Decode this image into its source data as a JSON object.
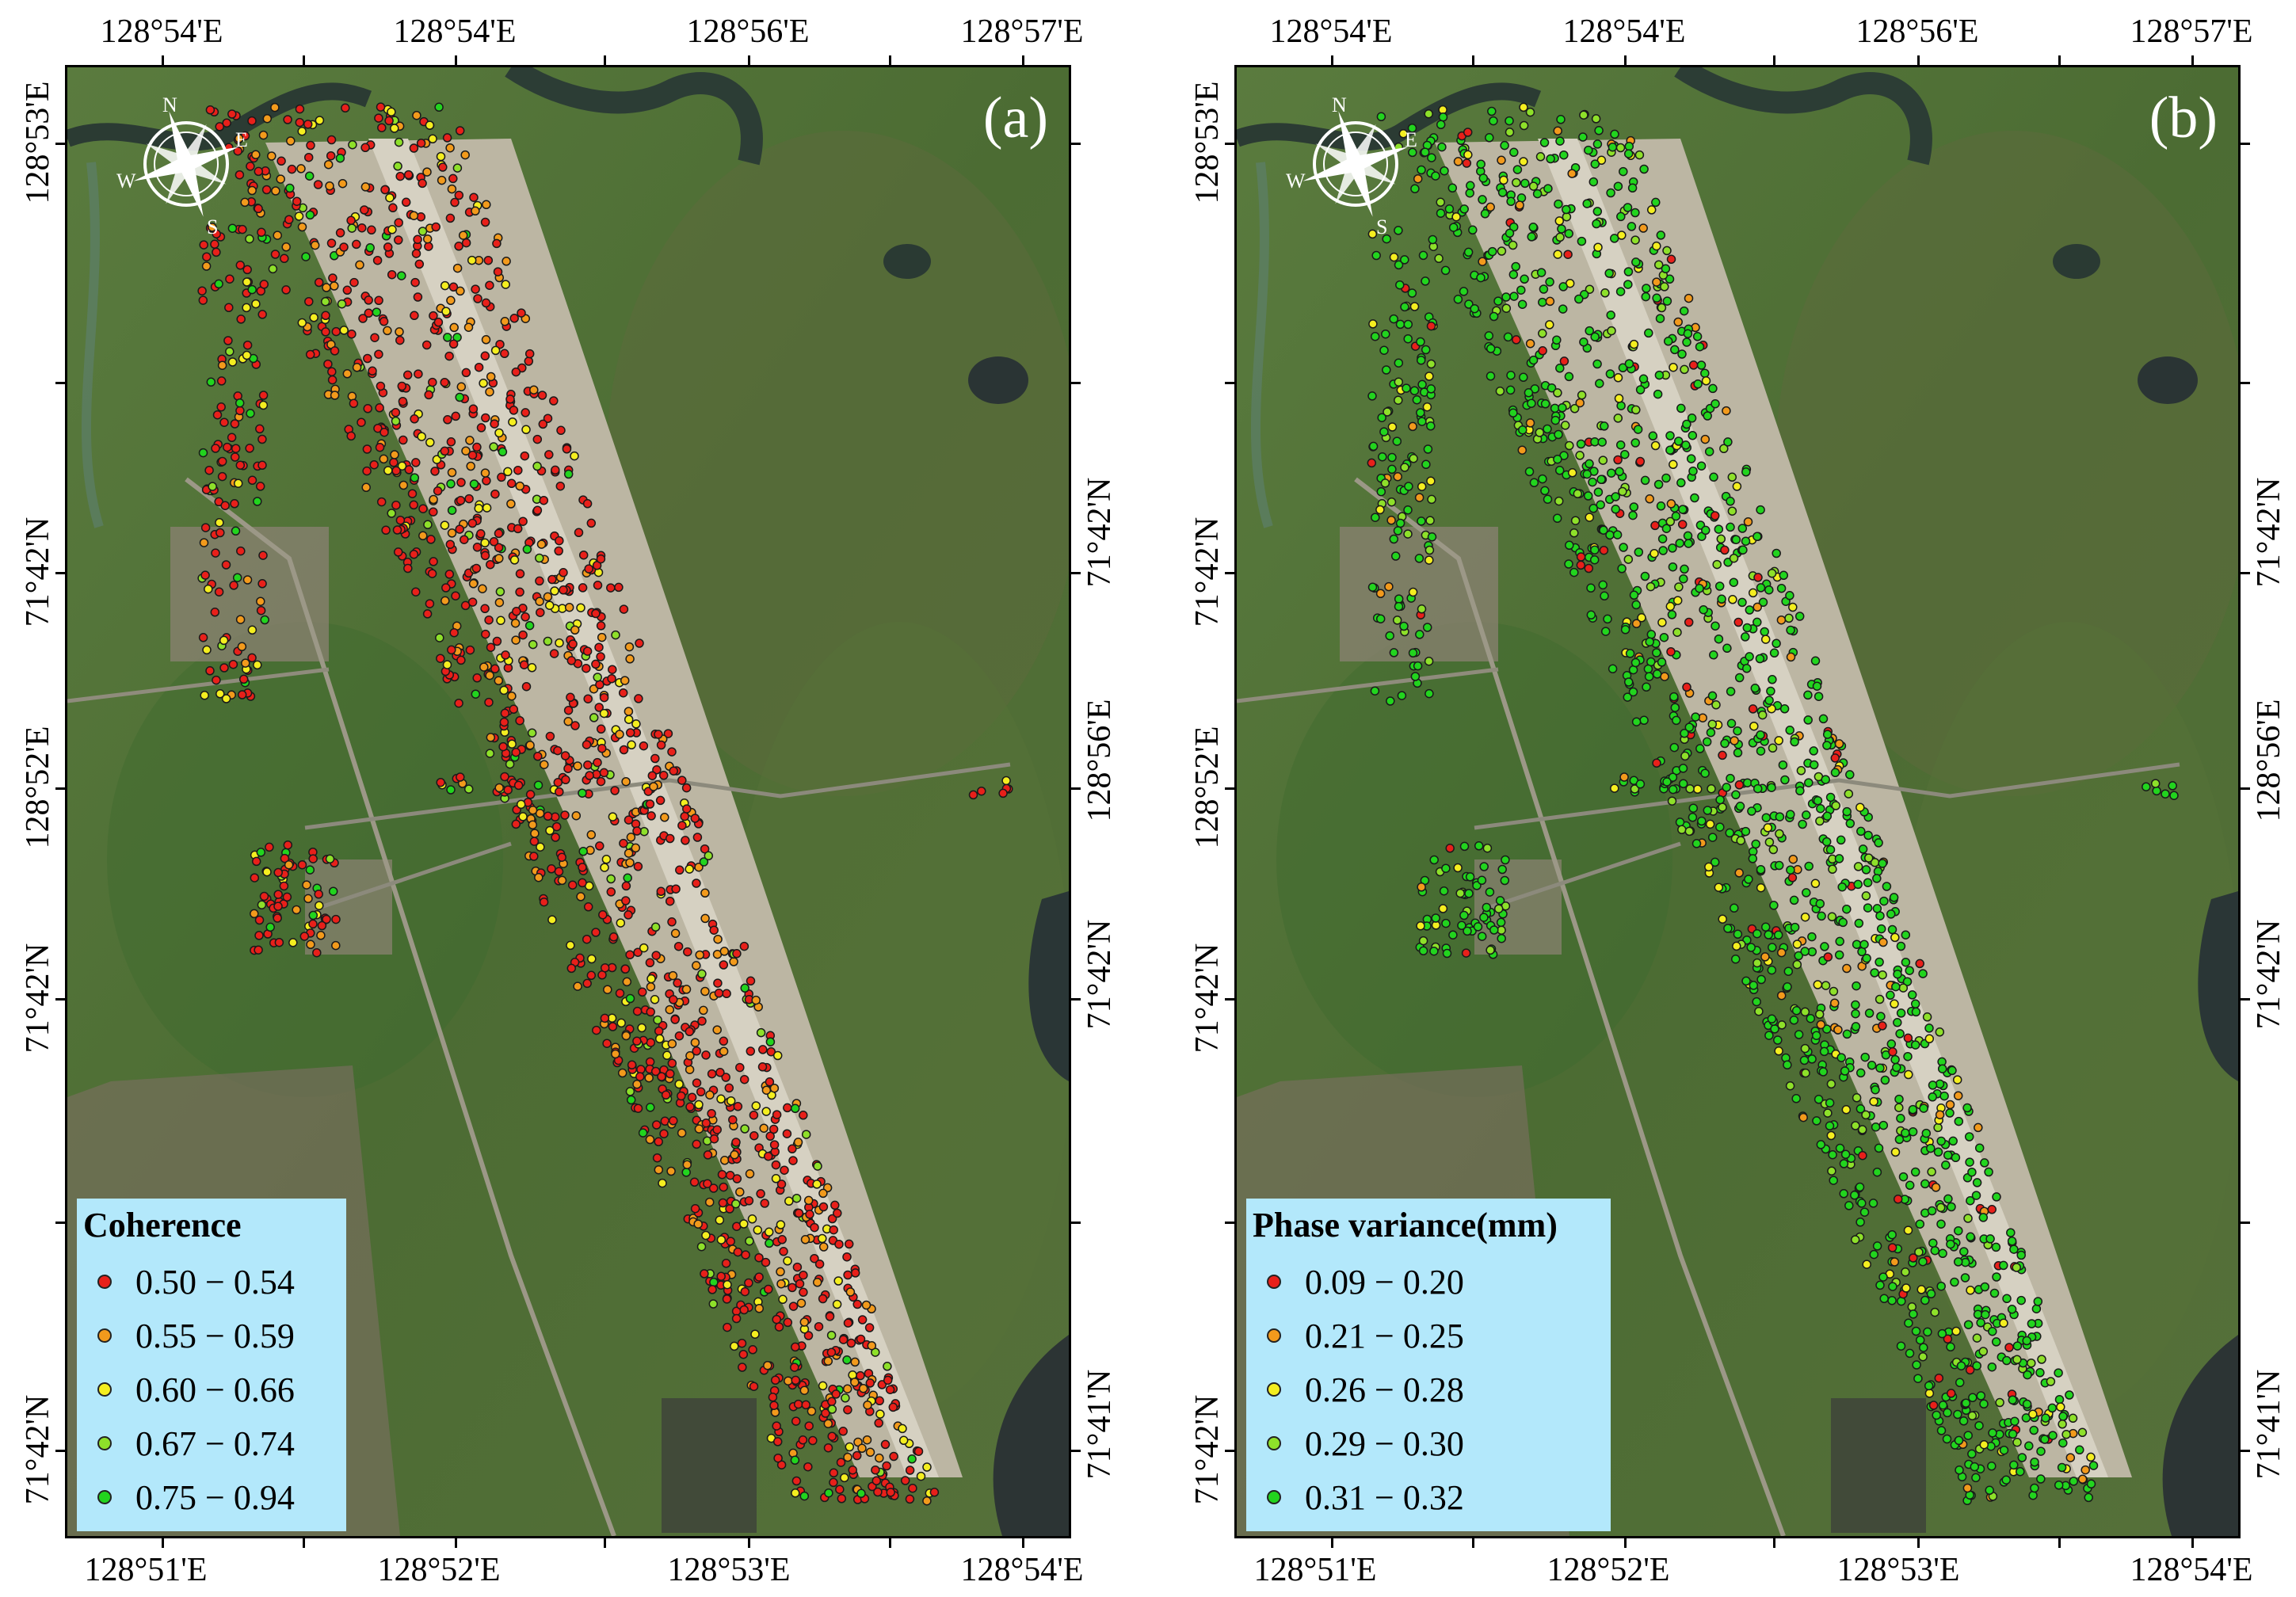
{
  "panels": [
    {
      "id": "a",
      "panel_label": "(a)",
      "legend_title": "Coherence",
      "legend": [
        {
          "label": "0.50 − 0.54",
          "color": "#e8201a"
        },
        {
          "label": "0.55 − 0.59",
          "color": "#f29a1c"
        },
        {
          "label": "0.60 − 0.66",
          "color": "#f4ee20"
        },
        {
          "label": "0.67 − 0.74",
          "color": "#8ee02a"
        },
        {
          "label": "0.75 − 0.94",
          "color": "#22d41e"
        }
      ],
      "point_mix": [
        0.62,
        0.17,
        0.11,
        0.05,
        0.05
      ],
      "top_labels": [
        "128°54'E",
        "128°54'E",
        "128°56'E",
        "128°57'E"
      ],
      "bottom_labels": [
        "128°51'E",
        "128°52'E",
        "128°53'E",
        "128°54'E"
      ],
      "left_labels": [
        "128°53'E",
        "71°42'N",
        "128°52'E",
        "71°42'N",
        "71°42'N"
      ],
      "right_labels": [
        "71°42'N",
        "128°56'E",
        "71°42'N",
        "71°41'N"
      ],
      "north_arrow": {
        "n": "N",
        "e": "E",
        "s": "S",
        "w": "W"
      }
    },
    {
      "id": "b",
      "panel_label": "(b)",
      "legend_title": "Phase variance(mm)",
      "legend": [
        {
          "label": "0.09 − 0.20",
          "color": "#e8201a"
        },
        {
          "label": "0.21 − 0.25",
          "color": "#f29a1c"
        },
        {
          "label": "0.26 − 0.28",
          "color": "#f4ee20"
        },
        {
          "label": "0.29 − 0.30",
          "color": "#8ee02a"
        },
        {
          "label": "0.31 − 0.32",
          "color": "#22d41e"
        }
      ],
      "point_mix": [
        0.04,
        0.05,
        0.07,
        0.12,
        0.72
      ],
      "top_labels": [
        "128°54'E",
        "128°54'E",
        "128°56'E",
        "128°57'E"
      ],
      "bottom_labels": [
        "128°51'E",
        "128°52'E",
        "128°53'E",
        "128°54'E"
      ],
      "left_labels": [
        "128°53'E",
        "71°42'N",
        "128°52'E",
        "71°42'N",
        "71°42'N"
      ],
      "right_labels": [
        "71°42'N",
        "128°56'E",
        "71°42'N",
        "71°41'N"
      ],
      "north_arrow": {
        "n": "N",
        "e": "E",
        "s": "S",
        "w": "W"
      }
    }
  ],
  "colors": {
    "vegetation": "#4f7035",
    "runway": "#c8c4b4",
    "water": "#2a3a3a",
    "legend_bg": "#b3e8fb"
  }
}
